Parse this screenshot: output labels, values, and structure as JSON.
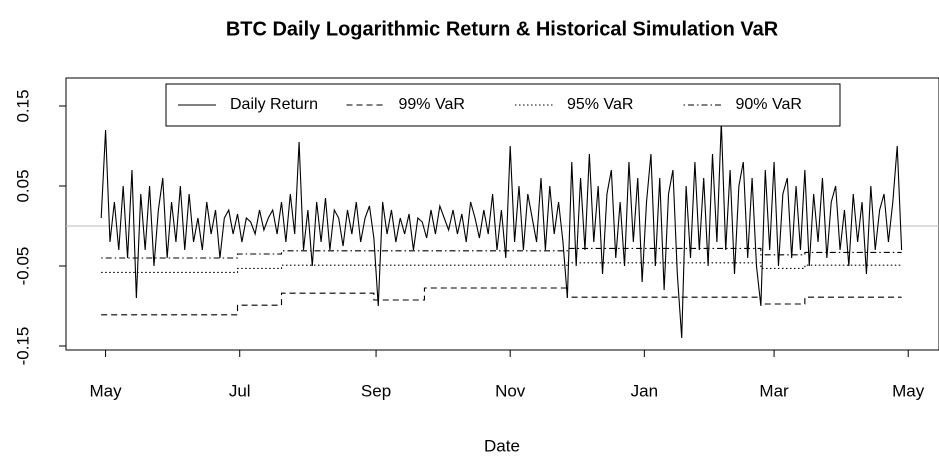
{
  "chart_data": {
    "type": "line",
    "title": "BTC Daily Logarithmic Return & Historical Simulation VaR",
    "xlabel": "Date",
    "xlim": [
      -18,
      379
    ],
    "xticks": [
      {
        "value": 0,
        "label": "May"
      },
      {
        "value": 61,
        "label": "Jul"
      },
      {
        "value": 123,
        "label": "Sep"
      },
      {
        "value": 184,
        "label": "Nov"
      },
      {
        "value": 245,
        "label": "Jan"
      },
      {
        "value": 304,
        "label": "Mar"
      },
      {
        "value": 365,
        "label": "May"
      }
    ],
    "ylim": [
      -0.155,
      0.185
    ],
    "yticks": [
      -0.15,
      -0.05,
      0.05,
      0.15
    ],
    "reference_line": 0,
    "legend": "top",
    "series": [
      {
        "name": "Daily Return",
        "color": "#000000",
        "dash": "solid",
        "x": [
          -2,
          0,
          2,
          4,
          6,
          8,
          10,
          12,
          14,
          16,
          18,
          20,
          22,
          24,
          26,
          28,
          30,
          32,
          34,
          36,
          38,
          40,
          42,
          44,
          46,
          48,
          50,
          52,
          54,
          56,
          58,
          60,
          62,
          64,
          66,
          68,
          70,
          72,
          74,
          76,
          78,
          80,
          82,
          84,
          86,
          88,
          90,
          92,
          94,
          96,
          98,
          100,
          102,
          104,
          106,
          108,
          110,
          112,
          114,
          116,
          118,
          120,
          122,
          124,
          126,
          128,
          130,
          132,
          134,
          136,
          138,
          140,
          142,
          144,
          146,
          148,
          150,
          152,
          154,
          156,
          158,
          160,
          162,
          164,
          166,
          168,
          170,
          172,
          174,
          176,
          178,
          180,
          182,
          184,
          186,
          188,
          190,
          192,
          194,
          196,
          198,
          200,
          202,
          204,
          206,
          208,
          210,
          212,
          214,
          216,
          218,
          220,
          222,
          224,
          226,
          228,
          230,
          232,
          234,
          236,
          238,
          240,
          242,
          244,
          246,
          248,
          250,
          252,
          254,
          256,
          258,
          260,
          262,
          264,
          266,
          268,
          270,
          272,
          274,
          276,
          278,
          280,
          282,
          284,
          286,
          288,
          290,
          292,
          294,
          296,
          298,
          300,
          302,
          304,
          306,
          308,
          310,
          312,
          314,
          316,
          318,
          320,
          322,
          324,
          326,
          328,
          330,
          332,
          334,
          336,
          338,
          340,
          342,
          344,
          346,
          348,
          350,
          352,
          354,
          356,
          358,
          360,
          362
        ],
        "values": [
          0.01,
          0.12,
          -0.02,
          0.03,
          -0.03,
          0.05,
          -0.04,
          0.07,
          -0.09,
          0.04,
          -0.03,
          0.05,
          -0.05,
          0.02,
          0.06,
          -0.04,
          0.03,
          -0.02,
          0.05,
          -0.03,
          0.04,
          -0.02,
          0.01,
          -0.03,
          0.03,
          -0.01,
          0.02,
          -0.04,
          0.01,
          0.02,
          -0.01,
          0.015,
          -0.02,
          0.01,
          0.005,
          -0.01,
          0.02,
          -0.005,
          0.01,
          0.02,
          -0.01,
          0.03,
          -0.02,
          0.04,
          -0.01,
          0.105,
          -0.03,
          0.02,
          -0.05,
          0.03,
          -0.02,
          0.035,
          -0.03,
          0.02,
          0.01,
          -0.025,
          0.02,
          -0.01,
          0.03,
          -0.02,
          0.01,
          0.025,
          -0.015,
          -0.1,
          0.03,
          -0.01,
          0.02,
          -0.02,
          0.01,
          -0.01,
          0.015,
          -0.03,
          0.01,
          0.005,
          -0.015,
          0.02,
          -0.01,
          0.025,
          0.01,
          -0.005,
          0.02,
          -0.01,
          0.015,
          -0.02,
          0.03,
          0.01,
          -0.015,
          0.02,
          -0.01,
          0.04,
          -0.03,
          0.02,
          -0.04,
          0.1,
          -0.02,
          0.05,
          -0.03,
          0.04,
          0.01,
          -0.02,
          0.06,
          -0.03,
          0.05,
          -0.01,
          0.03,
          -0.02,
          -0.09,
          0.08,
          -0.05,
          0.06,
          -0.03,
          0.09,
          -0.02,
          0.05,
          -0.06,
          0.04,
          0.07,
          -0.04,
          0.03,
          -0.05,
          0.08,
          -0.02,
          0.06,
          -0.07,
          0.03,
          0.09,
          -0.05,
          0.06,
          -0.08,
          0.04,
          0.07,
          -0.06,
          -0.14,
          0.05,
          -0.04,
          0.08,
          -0.03,
          0.06,
          -0.05,
          0.09,
          -0.02,
          0.13,
          -0.03,
          0.07,
          -0.06,
          0.05,
          0.08,
          -0.04,
          0.06,
          -0.05,
          -0.1,
          0.07,
          -0.03,
          0.08,
          -0.05,
          0.04,
          0.06,
          -0.04,
          0.05,
          -0.03,
          0.07,
          -0.05,
          0.04,
          -0.02,
          0.06,
          -0.04,
          0.03,
          0.05,
          -0.03,
          0.02,
          -0.05,
          0.04,
          -0.02,
          0.03,
          -0.06,
          0.05,
          -0.03,
          0.02,
          0.04,
          -0.02,
          0.03,
          0.1,
          -0.03
        ]
      },
      {
        "name": "99% VaR",
        "color": "#000000",
        "dash": "dashed",
        "x": [
          -2,
          60,
          60,
          80,
          80,
          122,
          122,
          145,
          145,
          210,
          210,
          298,
          298,
          318,
          318,
          362
        ],
        "values": [
          -0.111,
          -0.111,
          -0.099,
          -0.099,
          -0.084,
          -0.084,
          -0.0925,
          -0.0925,
          -0.0775,
          -0.0775,
          -0.089,
          -0.089,
          -0.0975,
          -0.0975,
          -0.089,
          -0.089
        ]
      },
      {
        "name": "95% VaR",
        "color": "#000000",
        "dash": "dotted",
        "x": [
          -2,
          60,
          60,
          80,
          80,
          210,
          210,
          298,
          298,
          318,
          318,
          362
        ],
        "values": [
          -0.058,
          -0.058,
          -0.053,
          -0.053,
          -0.049,
          -0.049,
          -0.046,
          -0.046,
          -0.053,
          -0.053,
          -0.049,
          -0.049
        ]
      },
      {
        "name": "90% VaR",
        "color": "#000000",
        "dash": "dotdash",
        "x": [
          -2,
          60,
          60,
          80,
          80,
          210,
          210,
          298,
          298,
          318,
          318,
          362
        ],
        "values": [
          -0.04,
          -0.04,
          -0.035,
          -0.035,
          -0.031,
          -0.031,
          -0.028,
          -0.028,
          -0.036,
          -0.036,
          -0.033,
          -0.033
        ]
      }
    ]
  }
}
